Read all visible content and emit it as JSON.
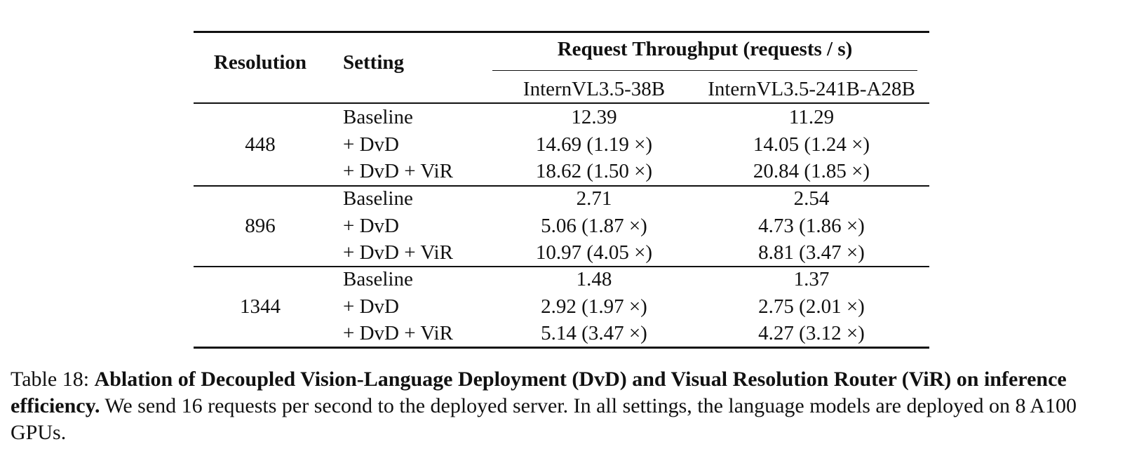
{
  "table": {
    "header": {
      "resolution": "Resolution",
      "setting": "Setting",
      "group": "Request Throughput (requests / s)",
      "model_a": "InternVL3.5-38B",
      "model_b": "InternVL3.5-241B-A28B"
    },
    "groups": [
      {
        "resolution": "448",
        "rows": [
          {
            "setting": "Baseline",
            "a": "12.39",
            "b": "11.29"
          },
          {
            "setting": "+ DvD",
            "a": "14.69 (1.19 ×)",
            "b": "14.05 (1.24 ×)"
          },
          {
            "setting": "+ DvD + ViR",
            "a": "18.62 (1.50 ×)",
            "b": "20.84 (1.85 ×)"
          }
        ]
      },
      {
        "resolution": "896",
        "rows": [
          {
            "setting": "Baseline",
            "a": "2.71",
            "b": "2.54"
          },
          {
            "setting": "+ DvD",
            "a": "5.06 (1.87 ×)",
            "b": "4.73 (1.86 ×)"
          },
          {
            "setting": "+ DvD + ViR",
            "a": "10.97 (4.05 ×)",
            "b": "8.81 (3.47 ×)"
          }
        ]
      },
      {
        "resolution": "1344",
        "rows": [
          {
            "setting": "Baseline",
            "a": "1.48",
            "b": "1.37"
          },
          {
            "setting": "+ DvD",
            "a": "2.92 (1.97 ×)",
            "b": "2.75 (2.01 ×)"
          },
          {
            "setting": "+ DvD + ViR",
            "a": "5.14 (3.47 ×)",
            "b": "4.27 (3.12 ×)"
          }
        ]
      }
    ]
  },
  "caption": {
    "label": "Table 18: ",
    "title": "Ablation of Decoupled Vision-Language Deployment (DvD) and Visual Resolution Router (ViR) on inference efficiency.",
    "body": " We send 16 requests per second to the deployed server. In all settings, the language models are deployed on 8 A100 GPUs."
  }
}
